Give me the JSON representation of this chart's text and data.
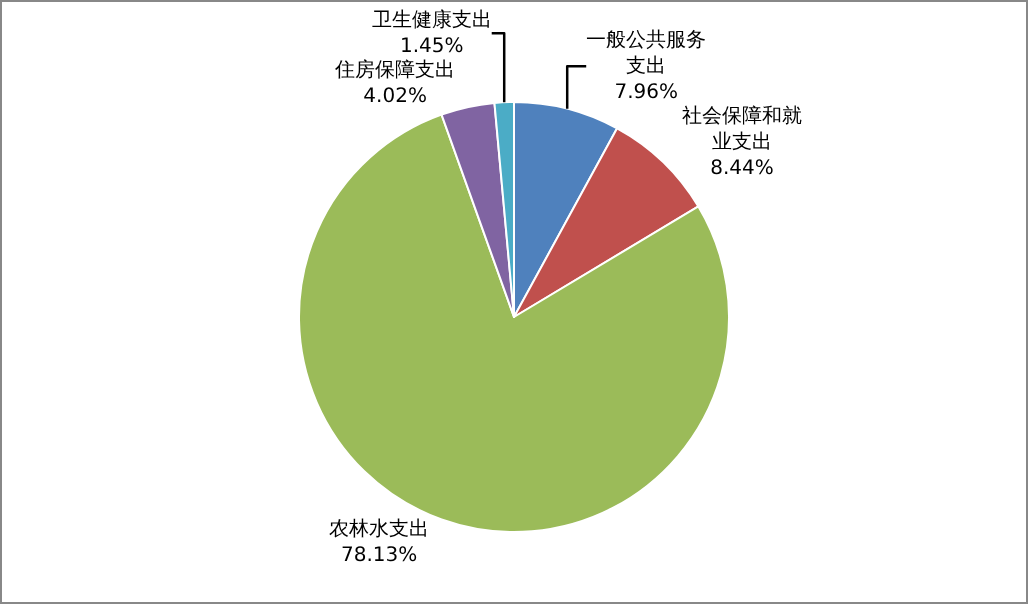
{
  "chart_data": {
    "type": "pie",
    "categories": [
      "一般公共服务支出",
      "社会保障和就业支出",
      "农林水支出",
      "住房保障支出",
      "卫生健康支出"
    ],
    "values": [
      7.96,
      8.44,
      78.13,
      4.02,
      1.45
    ],
    "colors": [
      "#4f81bd",
      "#c0504d",
      "#9bbb59",
      "#8064a2",
      "#4bacc6"
    ],
    "value_labels": [
      "7.96%",
      "8.44%",
      "78.13%",
      "4.02%",
      "1.45%"
    ],
    "legend": false
  }
}
